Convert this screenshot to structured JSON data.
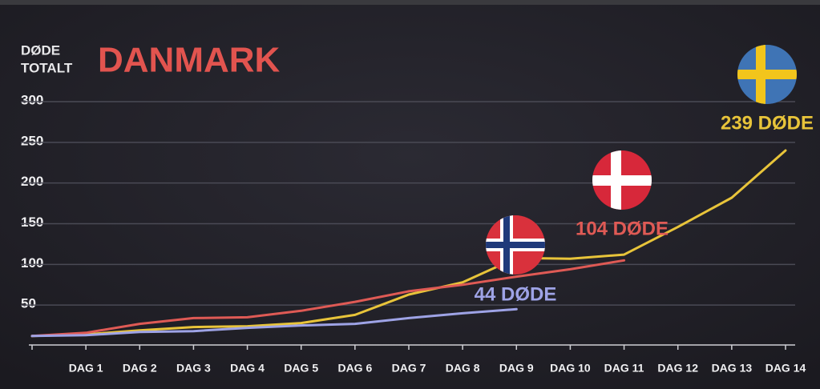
{
  "chart_data": {
    "type": "line",
    "title": "DANMARK",
    "ylabel": [
      "DØDE",
      "TOTALT"
    ],
    "categories": [
      null,
      "DAG 1",
      "DAG 2",
      "DAG 3",
      "DAG 4",
      "DAG 5",
      "DAG 6",
      "DAG 7",
      "DAG 8",
      "DAG 9",
      "DAG 10",
      "DAG 11",
      "DAG 12",
      "DAG 13",
      "DAG 14"
    ],
    "series": [
      {
        "color": "#e8c43a",
        "values": [
          11,
          13,
          18,
          22,
          23,
          27,
          37,
          62,
          77,
          107,
          106,
          111,
          145,
          181,
          239
        ]
      },
      {
        "color": "#df5a55",
        "values": [
          11,
          15,
          26,
          33,
          34,
          42,
          53,
          66,
          74,
          84,
          93,
          104,
          null,
          null,
          null
        ]
      },
      {
        "color": "#9ea3e6",
        "values": [
          11,
          12,
          16,
          17,
          21,
          24,
          26,
          33,
          39,
          44,
          null,
          null,
          null,
          null,
          null
        ]
      }
    ],
    "annotations": [
      "239 DØDE",
      "104 DØDE",
      "44 DØDE"
    ],
    "ylim": [
      0,
      300
    ],
    "yticks": [
      50,
      100,
      150,
      200,
      250,
      300
    ],
    "grid": true
  }
}
